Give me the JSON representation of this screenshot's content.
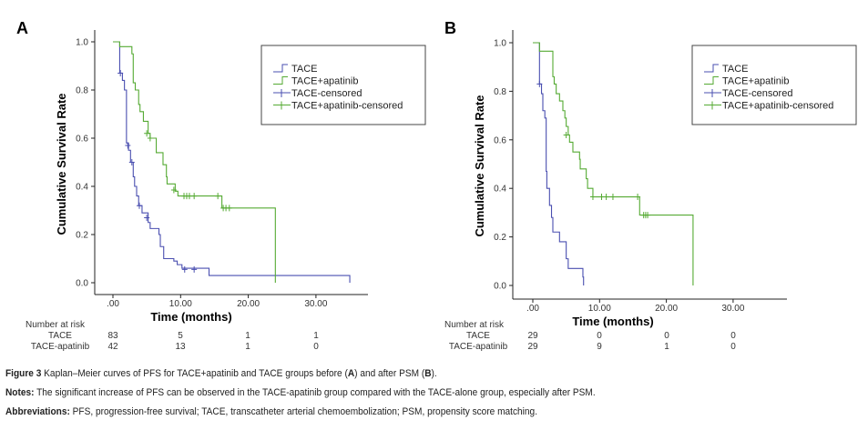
{
  "colors": {
    "tace": "#4a4fb0",
    "apatinib": "#55aa33",
    "axis": "#222222",
    "legend_border": "#444444"
  },
  "chart_data": [
    {
      "type": "line",
      "panel_label": "A",
      "title": "",
      "xlabel": "Time (months)",
      "ylabel": "Cumulative Survival Rate",
      "xlim": [
        -2.5,
        37
      ],
      "ylim": [
        -0.05,
        1.05
      ],
      "xticks": [
        ".00",
        "10.00",
        "20.00",
        "30.00"
      ],
      "xtick_values": [
        0,
        10,
        20,
        30
      ],
      "yticks": [
        "0.0",
        "0.2",
        "0.4",
        "0.6",
        "0.8",
        "1.0"
      ],
      "ytick_values": [
        0,
        0.2,
        0.4,
        0.6,
        0.8,
        1.0
      ],
      "legend_placement": "top-right",
      "legend": [
        "TACE",
        "TACE+apatinib",
        "TACE-censored",
        "TACE+apatinib-censored"
      ],
      "series": [
        {
          "name": "TACE",
          "steps": [
            [
              0,
              1.0
            ],
            [
              1.0,
              0.87
            ],
            [
              1.4,
              0.84
            ],
            [
              1.7,
              0.8
            ],
            [
              2.0,
              0.58
            ],
            [
              2.3,
              0.55
            ],
            [
              2.6,
              0.5
            ],
            [
              3.0,
              0.44
            ],
            [
              3.2,
              0.4
            ],
            [
              3.5,
              0.36
            ],
            [
              3.8,
              0.32
            ],
            [
              4.3,
              0.29
            ],
            [
              5.2,
              0.25
            ],
            [
              5.5,
              0.225
            ],
            [
              6.8,
              0.2
            ],
            [
              7.0,
              0.15
            ],
            [
              7.5,
              0.1
            ],
            [
              9.0,
              0.09
            ],
            [
              9.5,
              0.075
            ],
            [
              10.2,
              0.06
            ],
            [
              14.2,
              0.03
            ],
            [
              35.0,
              0.0
            ]
          ],
          "censored": [
            [
              1.1,
              0.87
            ],
            [
              2.2,
              0.57
            ],
            [
              2.8,
              0.5
            ],
            [
              3.9,
              0.32
            ],
            [
              5.0,
              0.27
            ],
            [
              10.6,
              0.055
            ],
            [
              12.0,
              0.055
            ]
          ]
        },
        {
          "name": "TACE+apatinib",
          "steps": [
            [
              0,
              1.0
            ],
            [
              1.0,
              0.98
            ],
            [
              2.8,
              0.95
            ],
            [
              3.0,
              0.83
            ],
            [
              3.3,
              0.8
            ],
            [
              3.8,
              0.74
            ],
            [
              4.0,
              0.71
            ],
            [
              4.5,
              0.67
            ],
            [
              5.2,
              0.62
            ],
            [
              5.5,
              0.6
            ],
            [
              6.4,
              0.54
            ],
            [
              7.4,
              0.49
            ],
            [
              7.9,
              0.44
            ],
            [
              8.0,
              0.41
            ],
            [
              9.2,
              0.38
            ],
            [
              9.6,
              0.36
            ],
            [
              16.1,
              0.31
            ],
            [
              24.0,
              0.0
            ]
          ],
          "censored": [
            [
              5.0,
              0.62
            ],
            [
              5.5,
              0.6
            ],
            [
              9.0,
              0.385
            ],
            [
              10.5,
              0.36
            ],
            [
              10.9,
              0.36
            ],
            [
              11.3,
              0.36
            ],
            [
              12.0,
              0.36
            ],
            [
              15.5,
              0.36
            ],
            [
              16.3,
              0.31
            ],
            [
              16.7,
              0.31
            ],
            [
              17.2,
              0.31
            ]
          ]
        }
      ],
      "risk_table": {
        "title": "Number at risk",
        "rows": [
          {
            "label": "TACE",
            "values": [
              "83",
              "5",
              "1",
              "1"
            ]
          },
          {
            "label": "TACE-apatinib",
            "values": [
              "42",
              "13",
              "1",
              "0"
            ]
          }
        ]
      }
    },
    {
      "type": "line",
      "panel_label": "B",
      "title": "",
      "xlabel": "Time (months)",
      "ylabel": "Cumulative Survival Rate",
      "xlim": [
        -2.8,
        37
      ],
      "ylim": [
        -0.05,
        1.05
      ],
      "xticks": [
        ".00",
        "10.00",
        "20.00",
        "30.00"
      ],
      "xtick_values": [
        0,
        10,
        20,
        30
      ],
      "yticks": [
        "0.0",
        "0.2",
        "0.4",
        "0.6",
        "0.8",
        "1.0"
      ],
      "ytick_values": [
        0,
        0.2,
        0.4,
        0.6,
        0.8,
        1.0
      ],
      "legend_placement": "top-right",
      "legend": [
        "TACE",
        "TACE+apatinib",
        "TACE-censored",
        "TACE+apatinib-censored"
      ],
      "series": [
        {
          "name": "TACE",
          "steps": [
            [
              0,
              1.0
            ],
            [
              1.0,
              0.83
            ],
            [
              1.3,
              0.79
            ],
            [
              1.5,
              0.72
            ],
            [
              1.8,
              0.69
            ],
            [
              2.0,
              0.47
            ],
            [
              2.1,
              0.4
            ],
            [
              2.5,
              0.33
            ],
            [
              2.8,
              0.28
            ],
            [
              3.0,
              0.22
            ],
            [
              4.0,
              0.18
            ],
            [
              5.0,
              0.11
            ],
            [
              5.3,
              0.07
            ],
            [
              7.5,
              0.035
            ],
            [
              7.6,
              0.0
            ]
          ],
          "censored": [
            [
              1.0,
              0.83
            ]
          ]
        },
        {
          "name": "TACE+apatinib",
          "steps": [
            [
              0,
              1.0
            ],
            [
              1.0,
              0.965
            ],
            [
              3.0,
              0.86
            ],
            [
              3.2,
              0.83
            ],
            [
              3.5,
              0.79
            ],
            [
              4.0,
              0.76
            ],
            [
              4.5,
              0.72
            ],
            [
              4.8,
              0.69
            ],
            [
              5.0,
              0.655
            ],
            [
              5.3,
              0.62
            ],
            [
              5.5,
              0.59
            ],
            [
              6.0,
              0.55
            ],
            [
              7.0,
              0.52
            ],
            [
              7.1,
              0.48
            ],
            [
              8.0,
              0.44
            ],
            [
              8.2,
              0.4
            ],
            [
              9.0,
              0.365
            ],
            [
              16.0,
              0.29
            ],
            [
              24.0,
              0.0
            ]
          ],
          "censored": [
            [
              5.0,
              0.62
            ],
            [
              9.0,
              0.365
            ],
            [
              10.3,
              0.365
            ],
            [
              11.0,
              0.365
            ],
            [
              12.0,
              0.365
            ],
            [
              15.7,
              0.365
            ],
            [
              16.6,
              0.29
            ],
            [
              16.9,
              0.29
            ],
            [
              17.2,
              0.29
            ]
          ]
        }
      ],
      "risk_table": {
        "title": "Number at risk",
        "rows": [
          {
            "label": "TACE",
            "values": [
              "29",
              "0",
              "0",
              "0"
            ]
          },
          {
            "label": "TACE-apatinib",
            "values": [
              "29",
              "9",
              "1",
              "0"
            ]
          }
        ]
      }
    }
  ],
  "caption": {
    "figure_label": "Figure 3",
    "figure_text": " Kaplan–Meier curves of PFS for TACE+apatinib and TACE groups before (",
    "a": "A",
    "mid": ") and after PSM (",
    "b": "B",
    "end": ").",
    "notes_label": "Notes:",
    "notes_text": " The significant increase of PFS can be observed in the TACE-apatinib group compared with the TACE-alone group, especially after PSM.",
    "abbr_label": "Abbreviations:",
    "abbr_text": " PFS, progression-free survival; TACE, transcatheter arterial chemoembolization; PSM, propensity score matching."
  }
}
